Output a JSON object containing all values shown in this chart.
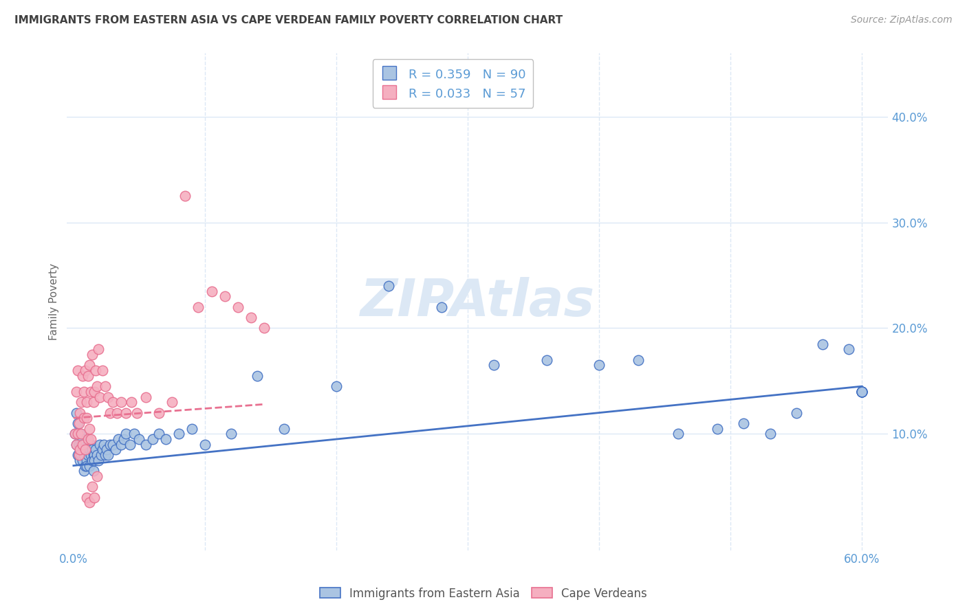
{
  "title": "IMMIGRANTS FROM EASTERN ASIA VS CAPE VERDEAN FAMILY POVERTY CORRELATION CHART",
  "source": "Source: ZipAtlas.com",
  "xlabel_ticks": [
    "0.0%",
    "",
    "",
    "",
    "",
    "",
    "60.0%"
  ],
  "xlabel_tick_vals": [
    0.0,
    0.1,
    0.2,
    0.3,
    0.4,
    0.5,
    0.6
  ],
  "ylabel_ticks": [
    "10.0%",
    "20.0%",
    "30.0%",
    "40.0%"
  ],
  "ylabel_tick_vals": [
    0.1,
    0.2,
    0.3,
    0.4
  ],
  "xlim": [
    -0.005,
    0.62
  ],
  "ylim": [
    -0.01,
    0.46
  ],
  "ylabel": "Family Poverty",
  "series1_label": "Immigrants from Eastern Asia",
  "series2_label": "Cape Verdeans",
  "series1_R": "0.359",
  "series1_N": "90",
  "series2_R": "0.033",
  "series2_N": "57",
  "series1_color": "#aac4e2",
  "series2_color": "#f5afc0",
  "series1_line_color": "#4472c4",
  "series2_line_color": "#e87090",
  "title_color": "#404040",
  "axis_color": "#5b9bd5",
  "watermark_color": "#dce8f5",
  "legend_border_color": "#c0c0c0",
  "grid_color": "#dce8f5",
  "trendline1_x0": 0.0,
  "trendline1_x1": 0.6,
  "trendline1_y0": 0.07,
  "trendline1_y1": 0.145,
  "trendline2_x0": 0.0,
  "trendline2_x1": 0.145,
  "trendline2_y0": 0.115,
  "trendline2_y1": 0.128,
  "series1_x": [
    0.001,
    0.002,
    0.002,
    0.003,
    0.003,
    0.004,
    0.004,
    0.005,
    0.005,
    0.005,
    0.006,
    0.006,
    0.007,
    0.007,
    0.007,
    0.008,
    0.008,
    0.008,
    0.009,
    0.009,
    0.01,
    0.01,
    0.01,
    0.011,
    0.011,
    0.012,
    0.012,
    0.013,
    0.013,
    0.014,
    0.014,
    0.015,
    0.015,
    0.016,
    0.016,
    0.017,
    0.018,
    0.019,
    0.02,
    0.021,
    0.022,
    0.023,
    0.024,
    0.025,
    0.026,
    0.028,
    0.03,
    0.032,
    0.034,
    0.036,
    0.038,
    0.04,
    0.043,
    0.046,
    0.05,
    0.055,
    0.06,
    0.065,
    0.07,
    0.08,
    0.09,
    0.1,
    0.12,
    0.14,
    0.16,
    0.2,
    0.24,
    0.28,
    0.32,
    0.36,
    0.4,
    0.43,
    0.46,
    0.49,
    0.51,
    0.53,
    0.55,
    0.57,
    0.59,
    0.6,
    0.6,
    0.6,
    0.6,
    0.6,
    0.6,
    0.6,
    0.6,
    0.6,
    0.6,
    0.6
  ],
  "series1_y": [
    0.1,
    0.09,
    0.12,
    0.08,
    0.11,
    0.09,
    0.08,
    0.1,
    0.085,
    0.075,
    0.09,
    0.08,
    0.095,
    0.075,
    0.085,
    0.08,
    0.09,
    0.065,
    0.085,
    0.07,
    0.075,
    0.085,
    0.07,
    0.09,
    0.08,
    0.085,
    0.07,
    0.08,
    0.09,
    0.075,
    0.085,
    0.08,
    0.065,
    0.08,
    0.075,
    0.085,
    0.08,
    0.075,
    0.09,
    0.08,
    0.085,
    0.09,
    0.08,
    0.085,
    0.08,
    0.09,
    0.09,
    0.085,
    0.095,
    0.09,
    0.095,
    0.1,
    0.09,
    0.1,
    0.095,
    0.09,
    0.095,
    0.1,
    0.095,
    0.1,
    0.105,
    0.09,
    0.1,
    0.155,
    0.105,
    0.145,
    0.24,
    0.22,
    0.165,
    0.17,
    0.165,
    0.17,
    0.1,
    0.105,
    0.11,
    0.1,
    0.12,
    0.185,
    0.18,
    0.14,
    0.14,
    0.14,
    0.14,
    0.14,
    0.14,
    0.14,
    0.14,
    0.14,
    0.14,
    0.14
  ],
  "series2_x": [
    0.001,
    0.002,
    0.002,
    0.003,
    0.003,
    0.004,
    0.004,
    0.005,
    0.005,
    0.006,
    0.006,
    0.007,
    0.007,
    0.008,
    0.008,
    0.009,
    0.009,
    0.01,
    0.01,
    0.011,
    0.011,
    0.012,
    0.012,
    0.013,
    0.013,
    0.014,
    0.015,
    0.016,
    0.017,
    0.018,
    0.019,
    0.02,
    0.022,
    0.024,
    0.026,
    0.028,
    0.03,
    0.033,
    0.036,
    0.04,
    0.044,
    0.048,
    0.055,
    0.065,
    0.075,
    0.085,
    0.095,
    0.105,
    0.115,
    0.125,
    0.135,
    0.145,
    0.01,
    0.012,
    0.014,
    0.016,
    0.018
  ],
  "series2_y": [
    0.1,
    0.09,
    0.14,
    0.1,
    0.16,
    0.11,
    0.08,
    0.12,
    0.085,
    0.13,
    0.1,
    0.155,
    0.09,
    0.14,
    0.115,
    0.16,
    0.085,
    0.13,
    0.115,
    0.155,
    0.095,
    0.165,
    0.105,
    0.14,
    0.095,
    0.175,
    0.13,
    0.14,
    0.16,
    0.145,
    0.18,
    0.135,
    0.16,
    0.145,
    0.135,
    0.12,
    0.13,
    0.12,
    0.13,
    0.12,
    0.13,
    0.12,
    0.135,
    0.12,
    0.13,
    0.325,
    0.22,
    0.235,
    0.23,
    0.22,
    0.21,
    0.2,
    0.04,
    0.035,
    0.05,
    0.04,
    0.06
  ]
}
